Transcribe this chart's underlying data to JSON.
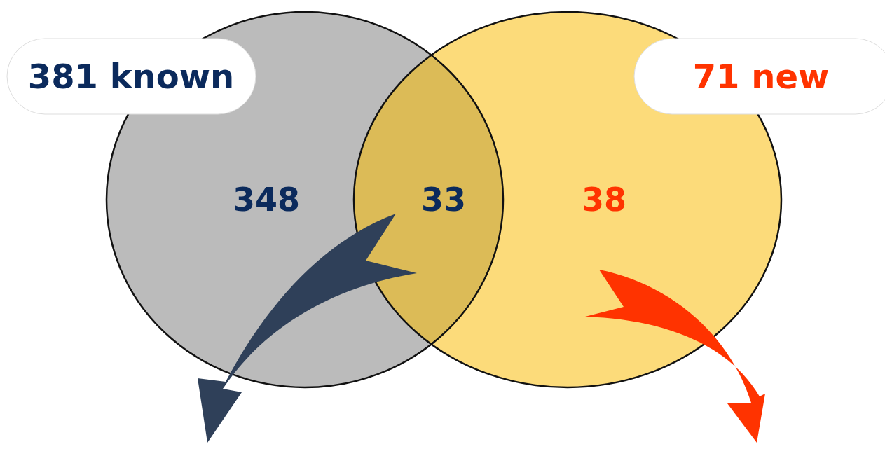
{
  "chart_data": {
    "type": "other",
    "categories": [
      null,
      null,
      null
    ],
    "values": [
      348,
      33,
      38
    ],
    "colors": [
      "#bbbbbb",
      "#dcbb57",
      "#fcdb7a"
    ],
    "data_labels": true,
    "annotations": [
      "381 known",
      "71 new"
    ]
  }
}
